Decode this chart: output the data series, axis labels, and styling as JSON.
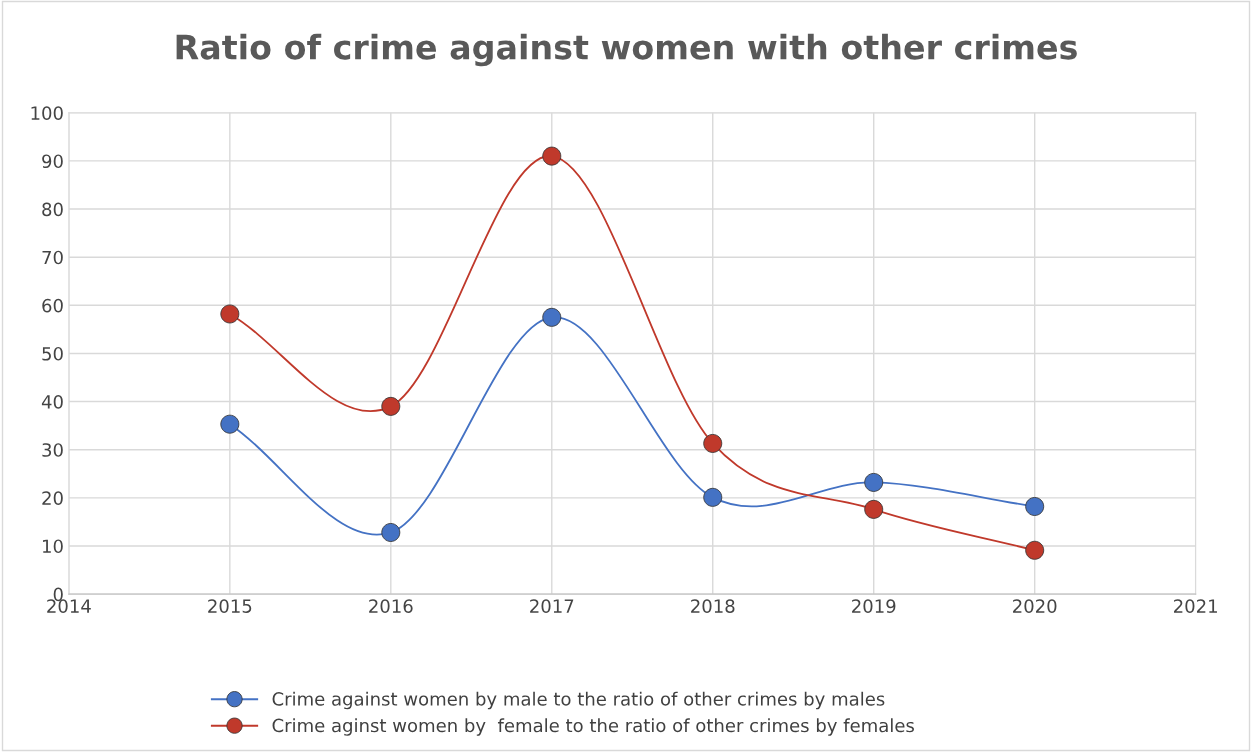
{
  "chart_data": {
    "type": "line",
    "title": "Ratio of crime against women with other crimes",
    "x": [
      2015,
      2016,
      2017,
      2018,
      2019,
      2020
    ],
    "series": [
      {
        "name": "Crime against women by male to the ratio of other crimes by males",
        "color": "#4472c4",
        "values": [
          35.3,
          12.8,
          57.5,
          20.1,
          23.2,
          18.2
        ]
      },
      {
        "name": "Crime aginst women by  female to the ratio of other crimes by females",
        "color": "#c0392b",
        "values": [
          58.2,
          39.0,
          91.0,
          31.3,
          17.6,
          9.1
        ]
      }
    ],
    "xlim": [
      2014,
      2021
    ],
    "xticks": [
      2014,
      2015,
      2016,
      2017,
      2018,
      2019,
      2020,
      2021
    ],
    "ylim": [
      0,
      100
    ],
    "yticks": [
      0,
      10,
      20,
      30,
      40,
      50,
      60,
      70,
      80,
      90,
      100
    ],
    "grid": true,
    "legend": "bottom",
    "marker": "circle",
    "line_style": "solid"
  }
}
